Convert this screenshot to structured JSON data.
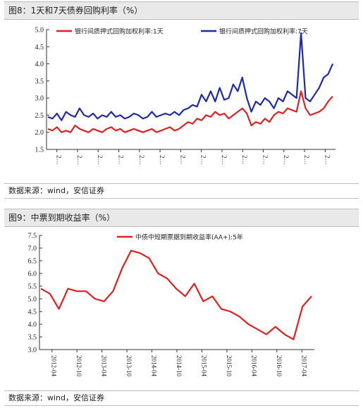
{
  "panels": [
    {
      "title": "图8：1天和7天债券回购利率（%）",
      "source": "数据来源：wind，安信证券",
      "chart_data": {
        "type": "line",
        "ylim": [
          1.5,
          5.0
        ],
        "yticks": [
          "1.5",
          "2.0",
          "2.5",
          "3.0",
          "3.5",
          "4.0",
          "4.5",
          "5.0"
        ],
        "xticks": [
          "2…",
          "2…",
          "2…",
          "2…",
          "2…",
          "2…",
          "2…",
          "2…",
          "2…",
          "2…",
          "2…",
          "2…",
          "2…",
          "2…"
        ],
        "legend_position": "top",
        "grid": false,
        "series": [
          {
            "name": "银行间质押式回购加权利率:1天",
            "color": "#e02020",
            "values": [
              2.1,
              2.05,
              2.15,
              2.0,
              2.05,
              2.0,
              2.2,
              2.1,
              2.05,
              2.0,
              2.1,
              2.05,
              2.0,
              2.1,
              2.15,
              2.05,
              2.1,
              2.0,
              2.05,
              2.1,
              2.05,
              2.0,
              2.05,
              2.1,
              2.0,
              2.05,
              2.1,
              2.15,
              2.05,
              2.1,
              2.2,
              2.3,
              2.25,
              2.4,
              2.35,
              2.5,
              2.45,
              2.6,
              2.5,
              2.55,
              2.4,
              2.5,
              2.6,
              2.7,
              2.55,
              2.2,
              2.3,
              2.25,
              2.4,
              2.3,
              2.5,
              2.6,
              2.55,
              2.7,
              2.65,
              2.6,
              3.2,
              2.7,
              2.5,
              2.55,
              2.6,
              2.7,
              2.9,
              3.05
            ]
          },
          {
            "name": "银行间质押式回购加权利率:7天",
            "color": "#1f2aa8",
            "values": [
              2.45,
              2.4,
              2.55,
              2.35,
              2.6,
              2.5,
              2.45,
              2.7,
              2.5,
              2.45,
              2.55,
              2.4,
              2.5,
              2.45,
              2.6,
              2.45,
              2.5,
              2.4,
              2.45,
              2.55,
              2.5,
              2.4,
              2.45,
              2.6,
              2.45,
              2.5,
              2.55,
              2.5,
              2.6,
              2.5,
              2.65,
              2.7,
              2.8,
              2.75,
              3.1,
              2.9,
              3.2,
              2.9,
              3.3,
              2.95,
              3.0,
              3.4,
              3.2,
              3.6,
              3.0,
              2.6,
              2.9,
              2.8,
              3.0,
              2.9,
              2.7,
              3.0,
              2.9,
              3.2,
              3.1,
              3.0,
              4.9,
              3.0,
              2.9,
              3.1,
              3.3,
              3.6,
              3.7,
              4.0
            ]
          }
        ]
      }
    },
    {
      "title": "图9：中票到期收益率（%）",
      "source": "数据来源：wind，安信证券",
      "chart_data": {
        "type": "line",
        "ylim": [
          3.0,
          7.5
        ],
        "yticks": [
          "3.0",
          "3.5",
          "4.0",
          "4.5",
          "5.0",
          "5.5",
          "6.0",
          "6.5",
          "7.0",
          "7.5"
        ],
        "xticks": [
          "2012-04",
          "2012-10",
          "2013-04",
          "2013-10",
          "2014-04",
          "2014-10",
          "2015-04",
          "2015-10",
          "2016-04",
          "2016-10",
          "2017-04"
        ],
        "legend_position": "top",
        "grid": false,
        "series": [
          {
            "name": "中债中短期票据到期收益率(AA+):5年",
            "color": "#e02020",
            "x": [
              "2012-04",
              "2012-06",
              "2012-08",
              "2012-10",
              "2012-12",
              "2013-02",
              "2013-04",
              "2013-06",
              "2013-08",
              "2013-10",
              "2013-12",
              "2014-02",
              "2014-04",
              "2014-06",
              "2014-08",
              "2014-10",
              "2014-12",
              "2015-02",
              "2015-04",
              "2015-06",
              "2015-08",
              "2015-10",
              "2015-12",
              "2016-02",
              "2016-04",
              "2016-06",
              "2016-08",
              "2016-10",
              "2016-12",
              "2017-02",
              "2017-04"
            ],
            "values": [
              5.4,
              5.2,
              4.6,
              5.4,
              5.3,
              5.3,
              5.0,
              4.9,
              5.3,
              6.2,
              6.9,
              6.8,
              6.6,
              6.0,
              5.8,
              5.4,
              5.1,
              5.6,
              4.9,
              5.1,
              4.6,
              4.5,
              4.3,
              4.0,
              3.8,
              3.6,
              3.9,
              3.6,
              3.4,
              4.7,
              5.1
            ]
          }
        ]
      }
    }
  ]
}
